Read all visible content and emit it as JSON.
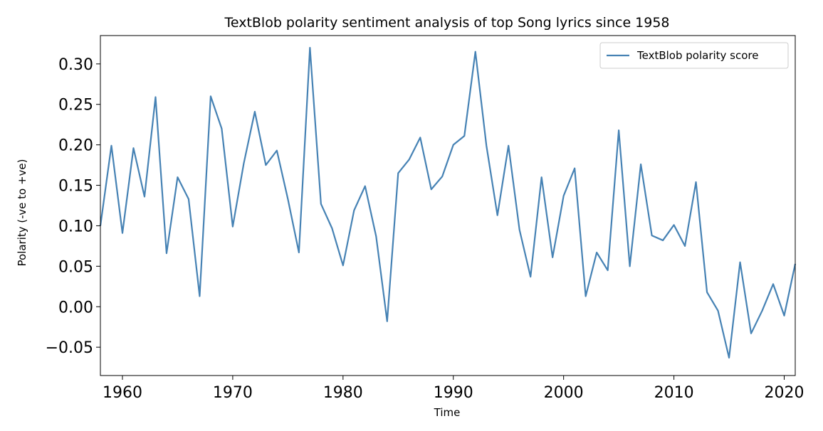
{
  "chart_data": {
    "type": "line",
    "title": "TextBlob polarity sentiment analysis of top Song lyrics since 1958",
    "xlabel": "Time",
    "ylabel": "Polarity (-ve to +ve)",
    "xlim": [
      1958,
      2021
    ],
    "ylim": [
      -0.085,
      0.335
    ],
    "grid": false,
    "legend_position": "top-right",
    "xticks": [
      1960,
      1970,
      1980,
      1990,
      2000,
      2010,
      2020
    ],
    "xtick_labels": [
      "1960",
      "1970",
      "1980",
      "1990",
      "2000",
      "2010",
      "2020"
    ],
    "yticks": [
      -0.05,
      0.0,
      0.05,
      0.1,
      0.15,
      0.2,
      0.25,
      0.3
    ],
    "ytick_labels": [
      "−0.05",
      "0.00",
      "0.05",
      "0.10",
      "0.15",
      "0.20",
      "0.25",
      "0.30"
    ],
    "series": [
      {
        "name": "TextBlob polarity score",
        "color": "#4682b4",
        "x": [
          1958,
          1959,
          1960,
          1961,
          1962,
          1963,
          1964,
          1965,
          1966,
          1967,
          1968,
          1969,
          1970,
          1971,
          1972,
          1973,
          1974,
          1975,
          1976,
          1977,
          1978,
          1979,
          1980,
          1981,
          1982,
          1983,
          1984,
          1985,
          1986,
          1987,
          1988,
          1989,
          1990,
          1991,
          1992,
          1993,
          1994,
          1995,
          1996,
          1997,
          1998,
          1999,
          2000,
          2001,
          2002,
          2003,
          2004,
          2005,
          2006,
          2007,
          2008,
          2009,
          2010,
          2011,
          2012,
          2013,
          2014,
          2015,
          2016,
          2017,
          2018,
          2019,
          2020,
          2021
        ],
        "y": [
          0.1,
          0.199,
          0.091,
          0.196,
          0.136,
          0.259,
          0.066,
          0.16,
          0.133,
          0.013,
          0.26,
          0.22,
          0.099,
          0.177,
          0.241,
          0.175,
          0.193,
          0.133,
          0.067,
          0.32,
          0.127,
          0.097,
          0.051,
          0.119,
          0.149,
          0.087,
          -0.018,
          0.165,
          0.182,
          0.209,
          0.145,
          0.161,
          0.2,
          0.211,
          0.315,
          0.199,
          0.113,
          0.199,
          0.095,
          0.037,
          0.16,
          0.061,
          0.137,
          0.171,
          0.013,
          0.067,
          0.045,
          0.218,
          0.05,
          0.176,
          0.088,
          0.082,
          0.101,
          0.075,
          0.154,
          0.018,
          -0.005,
          -0.063,
          0.055,
          -0.033,
          -0.005,
          0.028,
          -0.011,
          0.053
        ]
      }
    ]
  }
}
